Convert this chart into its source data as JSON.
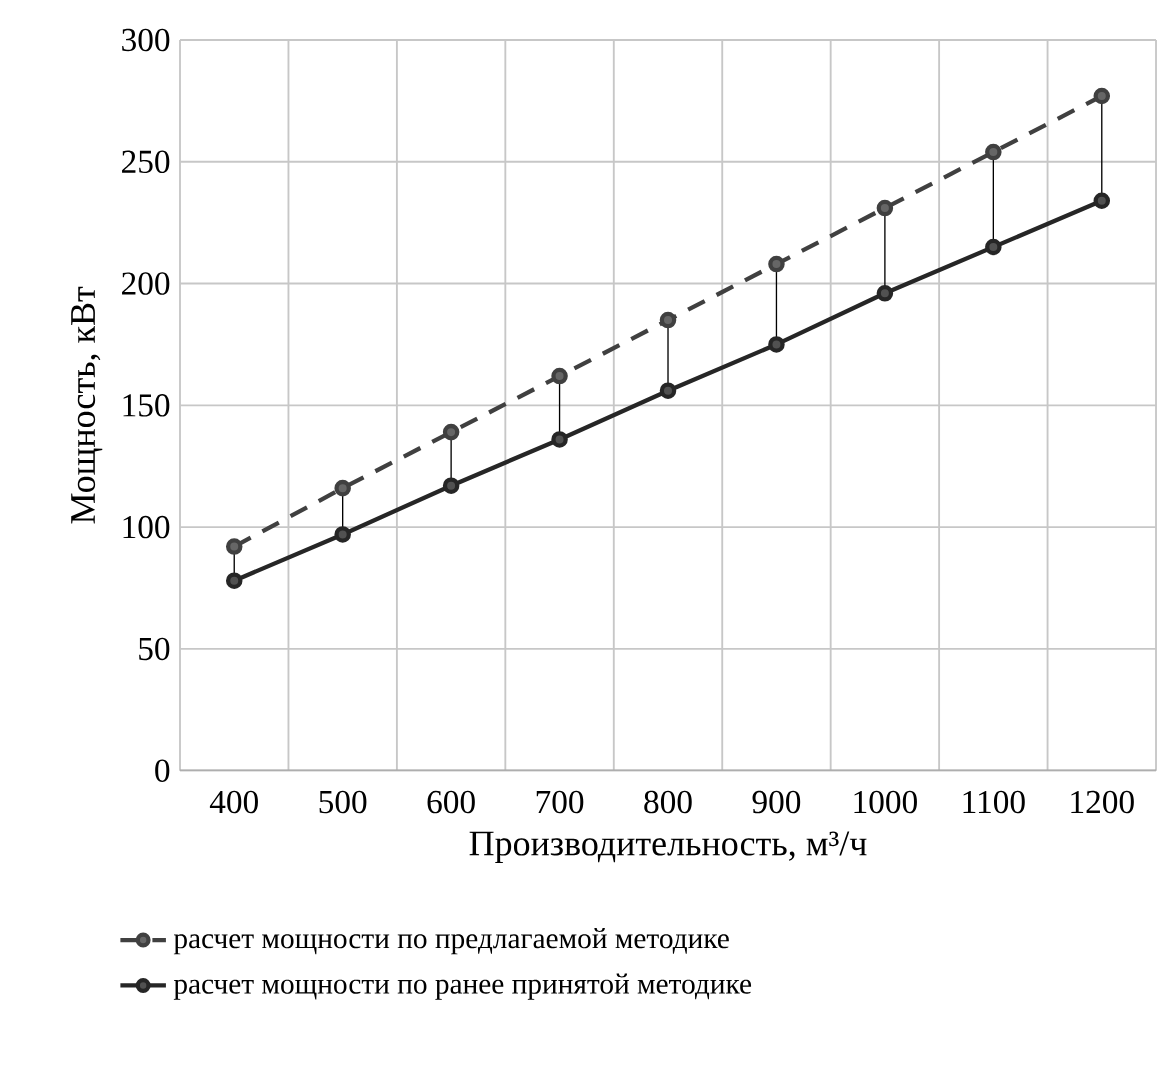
{
  "chart_data": {
    "type": "line",
    "categories": [
      "400",
      "500",
      "600",
      "700",
      "800",
      "900",
      "1000",
      "1100",
      "1200"
    ],
    "series": [
      {
        "name": "расчет мощности по предлагаемой методике",
        "color": "#404040",
        "line_style": "dashed",
        "values": [
          92,
          116,
          139,
          162,
          185,
          208,
          231,
          254,
          277
        ]
      },
      {
        "name": "расчет мощности по ранее принятой методике",
        "color": "#262626",
        "line_style": "solid",
        "values": [
          78,
          97,
          117,
          136,
          156,
          175,
          196,
          215,
          234
        ],
        "errors": [
          [
            78,
            92
          ],
          [
            97,
            116
          ],
          [
            117,
            139
          ],
          [
            136,
            162
          ],
          [
            156,
            185
          ],
          [
            175,
            208
          ],
          [
            196,
            231
          ],
          [
            215,
            254
          ],
          [
            234,
            277
          ]
        ]
      }
    ],
    "xlabel": "Производительность, м³/ч",
    "ylabel": "Мощность, кВт",
    "ylim": [
      0,
      300
    ],
    "yticks": [
      0,
      50,
      100,
      150,
      200,
      250,
      300
    ],
    "grid": true,
    "legend": "bottom",
    "marker": "circle"
  }
}
